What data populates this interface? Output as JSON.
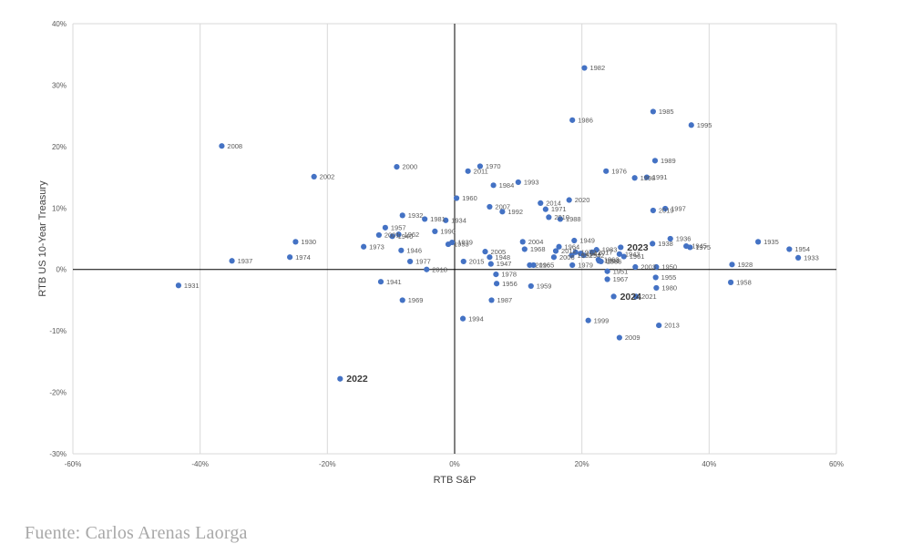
{
  "chart_data": {
    "type": "scatter",
    "title": "",
    "xlabel": "RTB S&P",
    "ylabel": "RTB US 10-Year Treasury",
    "xlim": [
      -60,
      60
    ],
    "ylim": [
      -30,
      40
    ],
    "x_ticks": [
      -60,
      -40,
      -20,
      0,
      20,
      40,
      60
    ],
    "y_ticks": [
      -30,
      -20,
      -10,
      0,
      10,
      20,
      30,
      40
    ],
    "x_tick_labels": [
      "-60%",
      "-40%",
      "-20%",
      "0%",
      "20%",
      "40%",
      "60%"
    ],
    "y_tick_labels": [
      "-30%",
      "-20%",
      "-10%",
      "0%",
      "10%",
      "20%",
      "30%",
      "40%"
    ],
    "grid": "vertical",
    "marker_color": "#4472c4",
    "points": [
      {
        "label": "1928",
        "x": 43.6,
        "y": 0.8
      },
      {
        "label": "1930",
        "x": -25.0,
        "y": 4.5
      },
      {
        "label": "1931",
        "x": -43.4,
        "y": -2.6
      },
      {
        "label": "1932",
        "x": -8.2,
        "y": 8.8
      },
      {
        "label": "1933",
        "x": 54.0,
        "y": 1.9
      },
      {
        "label": "1934",
        "x": -1.4,
        "y": 8.0
      },
      {
        "label": "1935",
        "x": 47.7,
        "y": 4.5
      },
      {
        "label": "1936",
        "x": 33.9,
        "y": 5.0
      },
      {
        "label": "1937",
        "x": -35.0,
        "y": 1.4
      },
      {
        "label": "1938",
        "x": 31.1,
        "y": 4.2
      },
      {
        "label": "1939",
        "x": -0.4,
        "y": 4.4
      },
      {
        "label": "1940",
        "x": -9.8,
        "y": 5.4
      },
      {
        "label": "1941",
        "x": -11.6,
        "y": -2.0
      },
      {
        "label": "1942",
        "x": 20.3,
        "y": 2.3
      },
      {
        "label": "1943",
        "x": 25.9,
        "y": 2.5
      },
      {
        "label": "1944",
        "x": 19.8,
        "y": 2.6
      },
      {
        "label": "1945",
        "x": 36.4,
        "y": 3.8
      },
      {
        "label": "1946",
        "x": -8.4,
        "y": 3.1
      },
      {
        "label": "1947",
        "x": 5.7,
        "y": 0.9
      },
      {
        "label": "1948",
        "x": 5.5,
        "y": 2.0
      },
      {
        "label": "1949",
        "x": 18.8,
        "y": 4.7
      },
      {
        "label": "1950",
        "x": 31.7,
        "y": 0.4
      },
      {
        "label": "1951",
        "x": 24.0,
        "y": -0.3
      },
      {
        "label": "1952",
        "x": 18.4,
        "y": 2.3
      },
      {
        "label": "1953",
        "x": -1.0,
        "y": 4.1
      },
      {
        "label": "1954",
        "x": 52.6,
        "y": 3.3
      },
      {
        "label": "1955",
        "x": 31.6,
        "y": -1.3
      },
      {
        "label": "1956",
        "x": 6.6,
        "y": -2.3
      },
      {
        "label": "1957",
        "x": -10.9,
        "y": 6.8
      },
      {
        "label": "1958",
        "x": 43.4,
        "y": -2.1
      },
      {
        "label": "1959",
        "x": 12.0,
        "y": -2.7
      },
      {
        "label": "1960",
        "x": 0.3,
        "y": 11.6
      },
      {
        "label": "1961",
        "x": 26.6,
        "y": 2.1
      },
      {
        "label": "1962",
        "x": -8.8,
        "y": 5.7
      },
      {
        "label": "1963",
        "x": 22.6,
        "y": 1.6
      },
      {
        "label": "1964",
        "x": 16.4,
        "y": 3.7
      },
      {
        "label": "1965",
        "x": 12.4,
        "y": 0.7
      },
      {
        "label": "1966",
        "x": 23.0,
        "y": 1.3
      },
      {
        "label": "1967",
        "x": 24.0,
        "y": -1.6
      },
      {
        "label": "1968",
        "x": 11.0,
        "y": 3.3
      },
      {
        "label": "1969",
        "x": -8.2,
        "y": -5.0
      },
      {
        "label": "1970",
        "x": 4.0,
        "y": 16.8
      },
      {
        "label": "1971",
        "x": 14.3,
        "y": 9.8
      },
      {
        "label": "1972",
        "x": 19.0,
        "y": 2.8
      },
      {
        "label": "1973",
        "x": -14.3,
        "y": 3.7
      },
      {
        "label": "1974",
        "x": -25.9,
        "y": 2.0
      },
      {
        "label": "1975",
        "x": 37.0,
        "y": 3.6
      },
      {
        "label": "1976",
        "x": 23.8,
        "y": 16.0
      },
      {
        "label": "1977",
        "x": -7.0,
        "y": 1.3
      },
      {
        "label": "1978",
        "x": 6.5,
        "y": -0.8
      },
      {
        "label": "1979",
        "x": 18.5,
        "y": 0.7
      },
      {
        "label": "1980",
        "x": 31.7,
        "y": -3.0
      },
      {
        "label": "1981",
        "x": -4.7,
        "y": 8.2
      },
      {
        "label": "1982",
        "x": 20.4,
        "y": 32.8
      },
      {
        "label": "1983",
        "x": 22.3,
        "y": 3.2
      },
      {
        "label": "1984",
        "x": 6.1,
        "y": 13.7
      },
      {
        "label": "1985",
        "x": 31.2,
        "y": 25.7
      },
      {
        "label": "1986",
        "x": 18.5,
        "y": 24.3
      },
      {
        "label": "1987",
        "x": 5.8,
        "y": -5.0
      },
      {
        "label": "1988",
        "x": 16.6,
        "y": 8.2
      },
      {
        "label": "1989",
        "x": 31.5,
        "y": 17.7
      },
      {
        "label": "1990",
        "x": -3.1,
        "y": 6.2
      },
      {
        "label": "1991",
        "x": 30.2,
        "y": 15.0
      },
      {
        "label": "1992",
        "x": 7.5,
        "y": 9.4
      },
      {
        "label": "1993",
        "x": 10.0,
        "y": 14.2
      },
      {
        "label": "1994",
        "x": 1.3,
        "y": -8.0
      },
      {
        "label": "1995",
        "x": 37.2,
        "y": 23.5
      },
      {
        "label": "1996",
        "x": 22.7,
        "y": 1.4
      },
      {
        "label": "1997",
        "x": 33.1,
        "y": 9.9
      },
      {
        "label": "1998",
        "x": 28.3,
        "y": 14.9
      },
      {
        "label": "1999",
        "x": 21.0,
        "y": -8.3
      },
      {
        "label": "2000",
        "x": -9.1,
        "y": 16.7
      },
      {
        "label": "2001",
        "x": -11.9,
        "y": 5.6
      },
      {
        "label": "2002",
        "x": -22.1,
        "y": 15.1
      },
      {
        "label": "2003",
        "x": 28.4,
        "y": 0.4
      },
      {
        "label": "2004",
        "x": 10.7,
        "y": 4.5
      },
      {
        "label": "2005",
        "x": 4.8,
        "y": 2.9
      },
      {
        "label": "2006",
        "x": 15.6,
        "y": 2.0
      },
      {
        "label": "2007",
        "x": 5.5,
        "y": 10.2
      },
      {
        "label": "2008",
        "x": -36.6,
        "y": 20.1
      },
      {
        "label": "2009",
        "x": 25.9,
        "y": -11.1
      },
      {
        "label": "2010",
        "x": 14.8,
        "y": 8.5
      },
      {
        "label": "2011",
        "x": 2.1,
        "y": 16.0
      },
      {
        "label": "2012",
        "x": 15.9,
        "y": 3.0
      },
      {
        "label": "2013",
        "x": 32.1,
        "y": -9.1
      },
      {
        "label": "2014",
        "x": 13.5,
        "y": 10.8
      },
      {
        "label": "2015",
        "x": 1.4,
        "y": 1.3
      },
      {
        "label": "2016",
        "x": 11.8,
        "y": 0.7
      },
      {
        "label": "2017",
        "x": 21.6,
        "y": 2.8
      },
      {
        "label": "2018",
        "x": -4.4,
        "y": 0.0
      },
      {
        "label": "2019",
        "x": 31.2,
        "y": 9.6
      },
      {
        "label": "2020",
        "x": 18.0,
        "y": 11.3
      },
      {
        "label": "2021",
        "x": 28.5,
        "y": -4.4
      },
      {
        "label": "2022",
        "x": -18.0,
        "y": -17.8,
        "highlight": true
      },
      {
        "label": "2023",
        "x": 26.1,
        "y": 3.6,
        "highlight": true
      },
      {
        "label": "2024",
        "x": 25.0,
        "y": -4.4,
        "highlight": true
      }
    ]
  },
  "footer": {
    "source": "Fuente: Carlos Arenas Laorga"
  }
}
